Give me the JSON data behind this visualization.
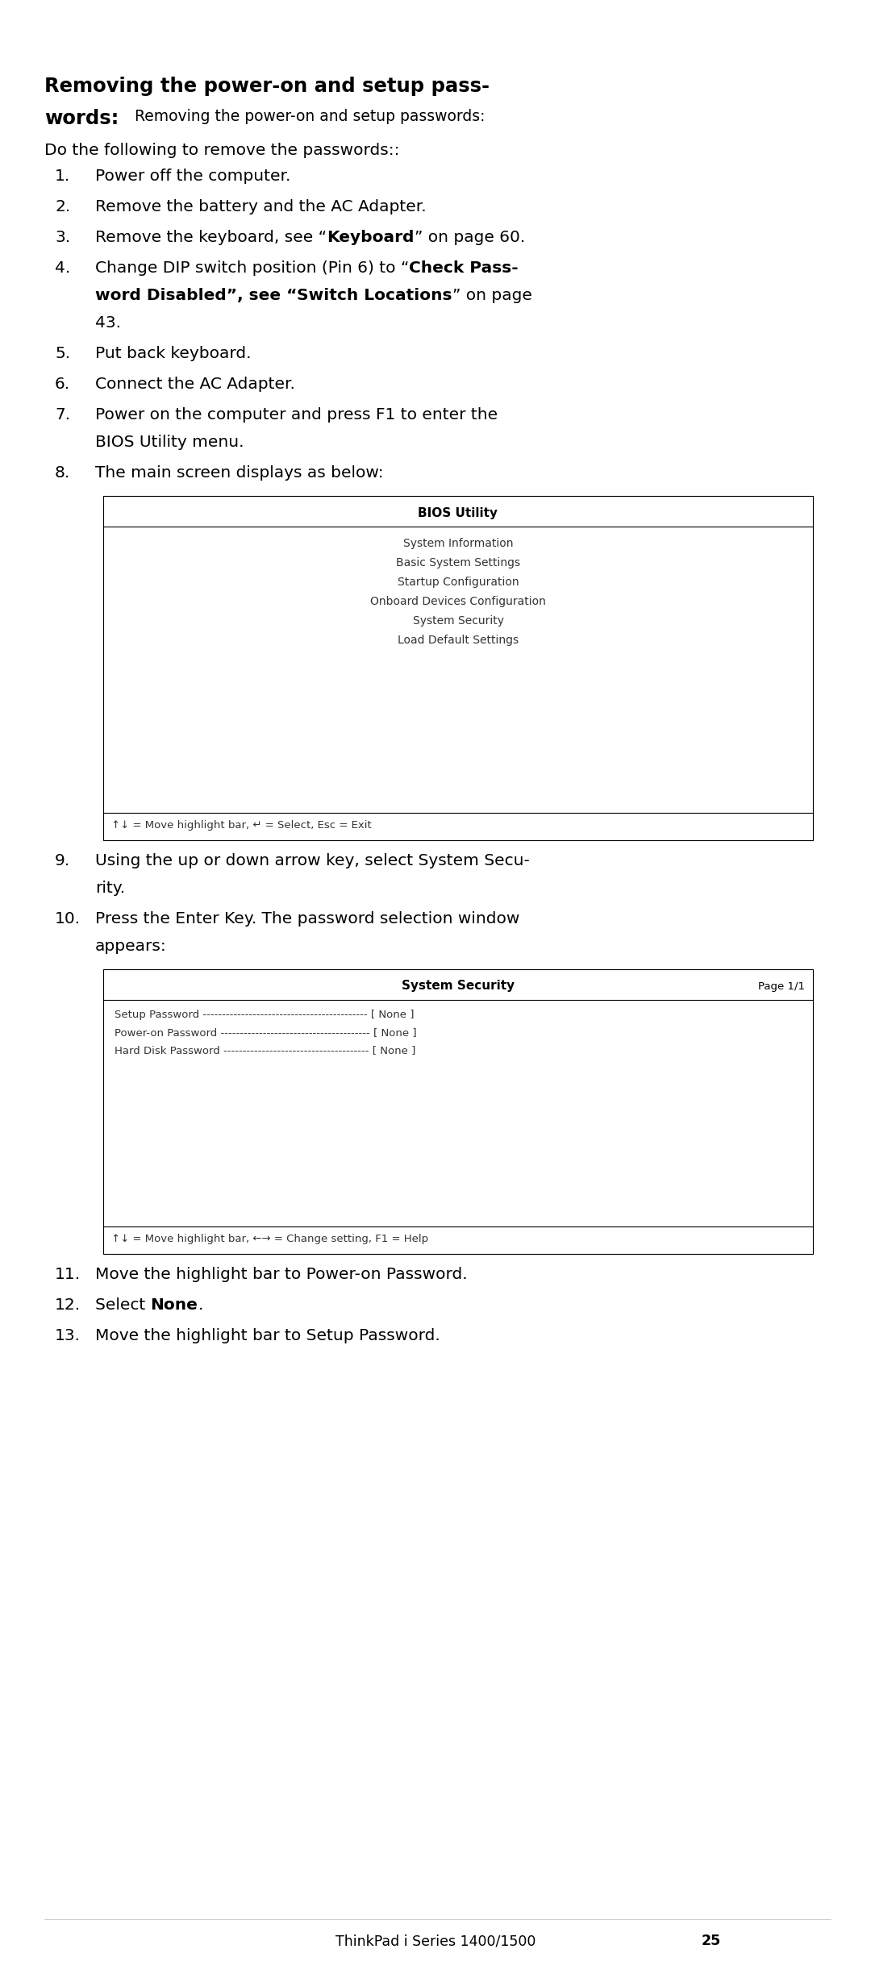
{
  "title_bold_line1": "Removing the power-on and setup pass-",
  "title_bold_line2": "words:",
  "title_normal": "Removing the power-on and setup passwords:",
  "intro": "Do the following to remove the passwords::",
  "steps": [
    {
      "num": "1.",
      "lines": [
        "Power off the computer."
      ],
      "bold_segs": [
        [
          [
            "Power off the computer.",
            false
          ]
        ]
      ]
    },
    {
      "num": "2.",
      "lines": [
        "Remove the battery and the AC Adapter."
      ],
      "bold_segs": [
        [
          [
            "Remove the battery and the AC Adapter.",
            false
          ]
        ]
      ]
    },
    {
      "num": "3.",
      "lines": [
        "Remove the keyboard, see “Keyboard” on page 60."
      ],
      "bold_segs": [
        [
          [
            "Remove the keyboard, see “",
            false
          ],
          [
            "Keyboard",
            true
          ],
          [
            "” on page 60.",
            false
          ]
        ]
      ]
    },
    {
      "num": "4.",
      "lines": [
        "Change DIP switch position (Pin 6) to “Check Pass-",
        "word Disabled”, see “Switch Locations” on page",
        "43."
      ],
      "bold_segs": [
        [
          [
            "Change DIP switch position (Pin 6) to “",
            false
          ],
          [
            "Check Pass-",
            true
          ]
        ],
        [
          [
            "word Disabled”, see “",
            true
          ],
          [
            "Switch Locations",
            true
          ],
          [
            "” on page",
            false
          ]
        ],
        [
          [
            "43.",
            false
          ]
        ]
      ]
    },
    {
      "num": "5.",
      "lines": [
        "Put back keyboard."
      ],
      "bold_segs": [
        [
          [
            "Put back keyboard.",
            false
          ]
        ]
      ]
    },
    {
      "num": "6.",
      "lines": [
        "Connect the AC Adapter."
      ],
      "bold_segs": [
        [
          [
            "Connect the AC Adapter.",
            false
          ]
        ]
      ]
    },
    {
      "num": "7.",
      "lines": [
        "Power on the computer and press F1 to enter the",
        "BIOS Utility menu."
      ],
      "bold_segs": [
        [
          [
            "Power on the computer and press F1 to enter the",
            false
          ]
        ],
        [
          [
            "BIOS Utility menu.",
            false
          ]
        ]
      ]
    },
    {
      "num": "8.",
      "lines": [
        "The main screen displays as below:"
      ],
      "bold_segs": [
        [
          [
            "The main screen displays as below:",
            false
          ]
        ]
      ]
    }
  ],
  "bios_box_title": "BIOS Utility",
  "bios_box_content": [
    "System Information",
    "Basic System Settings",
    "Startup Configuration",
    "Onboard Devices Configuration",
    "System Security",
    "Load Default Settings"
  ],
  "bios_box_footer": "↑↓ = Move highlight bar, ↵ = Select, Esc = Exit",
  "steps2": [
    {
      "num": "9.",
      "lines": [
        "Using the up or down arrow key, select System Secu-",
        "rity."
      ],
      "bold_segs": [
        [
          [
            "Using the up or down arrow key, select System Secu-",
            false
          ]
        ],
        [
          [
            "rity.",
            false
          ]
        ]
      ]
    },
    {
      "num": "10.",
      "lines": [
        "Press the Enter Key. The password selection window",
        "appears:"
      ],
      "bold_segs": [
        [
          [
            "Press the Enter Key. The password selection window",
            false
          ]
        ],
        [
          [
            "appears:",
            false
          ]
        ]
      ]
    }
  ],
  "sys_sec_title": "System Security",
  "sys_sec_page": "Page 1/1",
  "sys_sec_content": [
    "Setup Password ------------------------------------------- [ None ]",
    "Power-on Password --------------------------------------- [ None ]",
    "Hard Disk Password -------------------------------------- [ None ]"
  ],
  "sys_sec_footer": "↑↓ = Move highlight bar, ←→ = Change setting, F1 = Help",
  "steps3": [
    {
      "num": "11.",
      "lines": [
        "Move the highlight bar to Power-on Password."
      ],
      "bold_segs": [
        [
          [
            "Move the highlight bar to Power-on Password.",
            false
          ]
        ]
      ]
    },
    {
      "num": "12.",
      "lines": [
        "Select None."
      ],
      "bold_segs": [
        [
          [
            "Select ",
            false
          ],
          [
            "None",
            true
          ],
          [
            ".",
            false
          ]
        ]
      ]
    },
    {
      "num": "13.",
      "lines": [
        "Move the highlight bar to Setup Password."
      ],
      "bold_segs": [
        [
          [
            "Move the highlight bar to Setup Password.",
            false
          ]
        ]
      ]
    }
  ],
  "footer": "ThinkPad i Series 1400/1500",
  "footer_pagenum": "25",
  "bg_color": "#ffffff",
  "text_color": "#000000"
}
